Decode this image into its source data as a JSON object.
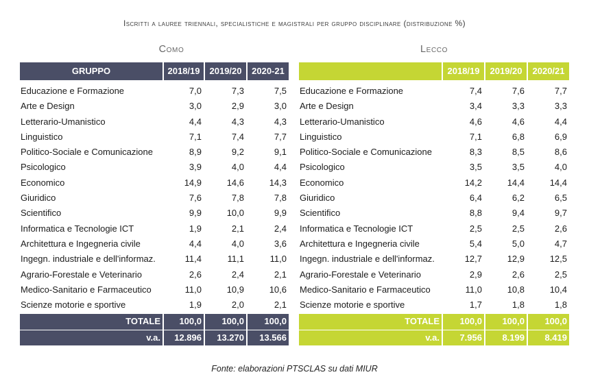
{
  "title": "Iscritti a lauree triennali, specialistiche e magistrali per gruppo disciplinare (distribuzione %)",
  "como": {
    "heading": "Como",
    "header": [
      "GRUPPO",
      "2018/19",
      "2019/20",
      "2020-21"
    ],
    "rows": [
      [
        "Educazione e Formazione",
        "7,0",
        "7,3",
        "7,5"
      ],
      [
        "Arte e Design",
        "3,0",
        "2,9",
        "3,0"
      ],
      [
        "Letterario-Umanistico",
        "4,4",
        "4,3",
        "4,3"
      ],
      [
        "Linguistico",
        "7,1",
        "7,4",
        "7,7"
      ],
      [
        "Politico-Sociale e Comunicazione",
        "8,9",
        "9,2",
        "9,1"
      ],
      [
        "Psicologico",
        "3,9",
        "4,0",
        "4,4"
      ],
      [
        "Economico",
        "14,9",
        "14,6",
        "14,3"
      ],
      [
        "Giuridico",
        "7,6",
        "7,8",
        "7,8"
      ],
      [
        "Scientifico",
        "9,9",
        "10,0",
        "9,9"
      ],
      [
        "Informatica e Tecnologie ICT",
        "1,9",
        "2,1",
        "2,4"
      ],
      [
        "Architettura e Ingegneria civile",
        "4,4",
        "4,0",
        "3,6"
      ],
      [
        "Ingegn. industriale e dell'informaz.",
        "11,4",
        "11,1",
        "11,0"
      ],
      [
        "Agrario-Forestale e Veterinario",
        "2,6",
        "2,4",
        "2,1"
      ],
      [
        "Medico-Sanitario e Farmaceutico",
        "11,0",
        "10,9",
        "10,6"
      ],
      [
        "Scienze motorie e sportive",
        "1,9",
        "2,0",
        "2,1"
      ]
    ],
    "totale": [
      "TOTALE",
      "100,0",
      "100,0",
      "100,0"
    ],
    "va": [
      "v.a.",
      "12.896",
      "13.270",
      "13.566"
    ]
  },
  "lecco": {
    "heading": "Lecco",
    "header": [
      "",
      "2018/19",
      "2019/20",
      "2020/21"
    ],
    "rows": [
      [
        "Educazione e Formazione",
        "7,4",
        "7,6",
        "7,7"
      ],
      [
        "Arte e Design",
        "3,4",
        "3,3",
        "3,3"
      ],
      [
        "Letterario-Umanistico",
        "4,6",
        "4,6",
        "4,4"
      ],
      [
        "Linguistico",
        "7,1",
        "6,8",
        "6,9"
      ],
      [
        "Politico-Sociale e Comunicazione",
        "8,3",
        "8,5",
        "8,6"
      ],
      [
        "Psicologico",
        "3,5",
        "3,5",
        "4,0"
      ],
      [
        "Economico",
        "14,2",
        "14,4",
        "14,4"
      ],
      [
        "Giuridico",
        "6,4",
        "6,2",
        "6,5"
      ],
      [
        "Scientifico",
        "8,8",
        "9,4",
        "9,7"
      ],
      [
        "Informatica e Tecnologie ICT",
        "2,5",
        "2,5",
        "2,6"
      ],
      [
        "Architettura e Ingegneria civile",
        "5,4",
        "5,0",
        "4,7"
      ],
      [
        "Ingegn. industriale e dell'informaz.",
        "12,7",
        "12,9",
        "12,5"
      ],
      [
        "Agrario-Forestale e Veterinario",
        "2,9",
        "2,6",
        "2,5"
      ],
      [
        "Medico-Sanitario e Farmaceutico",
        "11,0",
        "10,8",
        "10,4"
      ],
      [
        "Scienze motorie e sportive",
        "1,7",
        "1,8",
        "1,8"
      ]
    ],
    "totale": [
      "TOTALE",
      "100,0",
      "100,0",
      "100,0"
    ],
    "va": [
      "v.a.",
      "7.956",
      "8.199",
      "8.419"
    ]
  },
  "source": "Fonte:  elaborazioni PTSCLAS su dati MIUR",
  "colors": {
    "como_header": "#4a4e66",
    "lecco_header": "#c5d634"
  }
}
